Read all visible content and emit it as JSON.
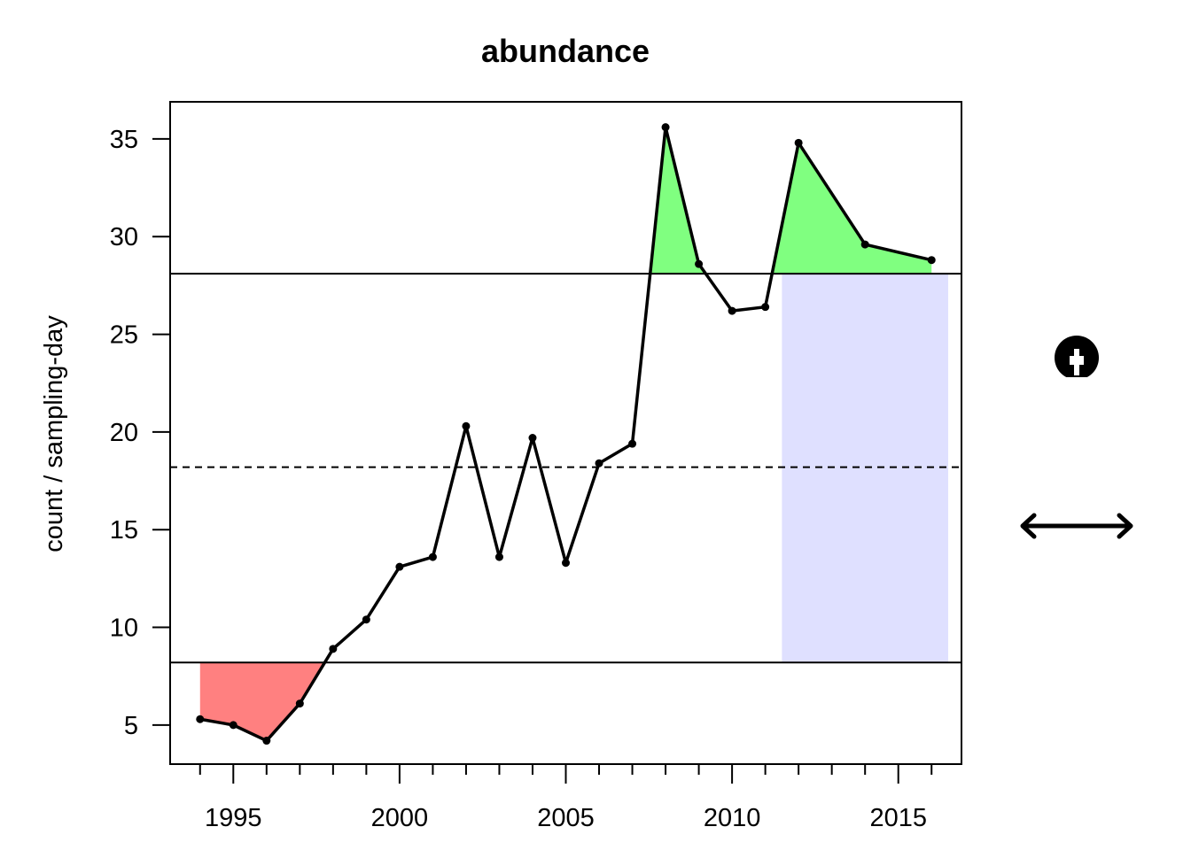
{
  "chart_data": {
    "type": "line",
    "title": "abundance",
    "xlabel": "",
    "ylabel": "count / sampling-day",
    "xlim": [
      1993.1,
      2016.9
    ],
    "ylim": [
      3.0,
      36.9
    ],
    "x_ticks": [
      1995,
      2000,
      2005,
      2010,
      2015
    ],
    "x_tick_labels": [
      "1995",
      "2000",
      "2005",
      "2010",
      "2015"
    ],
    "x_minor_ticks": [
      1994,
      1995,
      1996,
      1997,
      1998,
      1999,
      2000,
      2001,
      2002,
      2003,
      2004,
      2005,
      2006,
      2007,
      2008,
      2009,
      2010,
      2011,
      2012,
      2013,
      2014,
      2015,
      2016
    ],
    "y_ticks": [
      5,
      10,
      15,
      20,
      25,
      30,
      35
    ],
    "y_tick_labels": [
      "5",
      "10",
      "15",
      "20",
      "25",
      "30",
      "35"
    ],
    "series": [
      {
        "x": [
          1994,
          1995,
          1996,
          1997,
          1998,
          1999,
          2000,
          2001,
          2002,
          2003,
          2004,
          2005,
          2006,
          2007,
          2008,
          2009,
          2010,
          2011,
          2012,
          2014,
          2016
        ],
        "y": [
          5.3,
          5.0,
          4.2,
          6.1,
          8.9,
          10.4,
          13.1,
          13.6,
          20.3,
          13.6,
          19.7,
          13.3,
          18.4,
          19.4,
          35.6,
          28.6,
          26.2,
          26.4,
          34.8,
          29.6,
          28.8
        ]
      }
    ],
    "reference_lines": {
      "upper": 28.1,
      "mean": 18.2,
      "lower": 8.2
    },
    "highlight_band": {
      "x_range": [
        2011.5,
        2016.5
      ],
      "y_range": [
        8.2,
        28.1
      ]
    },
    "colors": {
      "line": "#000000",
      "above_fill": "#80ff80",
      "below_fill": "#ff8080",
      "band_fill": "#dfe0ff"
    },
    "side_icons": [
      "thumbs-down-icon",
      "double-arrow-icon"
    ]
  }
}
